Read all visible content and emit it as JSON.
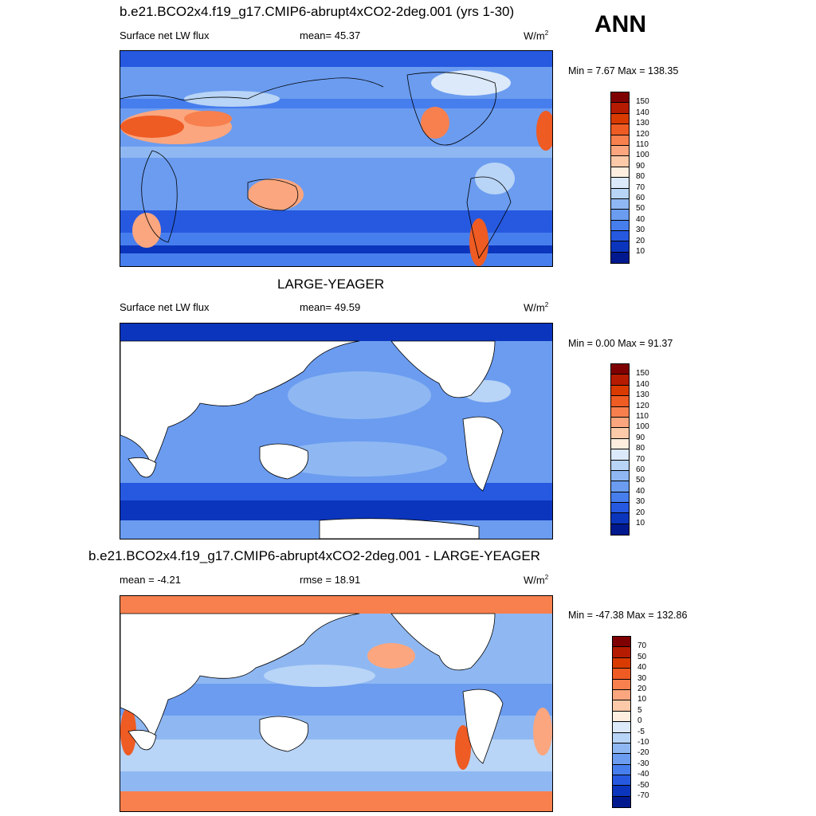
{
  "season": "ANN",
  "panel1": {
    "title": "b.e21.BCO2x4.f19_g17.CMIP6-abrupt4xCO2-2deg.001 (yrs 1-30)",
    "left": "Surface net LW flux",
    "center": "mean=  45.37",
    "units_base": "W/m",
    "units_exp": "2",
    "minmax": "Min =   7.67 Max = 138.35"
  },
  "panel2": {
    "title": "LARGE-YEAGER",
    "left": "Surface net LW flux",
    "center": "mean=  49.59",
    "units_base": "W/m",
    "units_exp": "2",
    "minmax": "Min =   0.00 Max =  91.37"
  },
  "panel3": {
    "title": "b.e21.BCO2x4.f19_g17.CMIP6-abrupt4xCO2-2deg.001 - LARGE-YEAGER",
    "left": "mean =  -4.21",
    "center": "rmse =  18.91",
    "units_base": "W/m",
    "units_exp": "2",
    "minmax": "Min = -47.38 Max = 132.86"
  },
  "colorbar_abs": {
    "labels": [
      "150",
      "140",
      "130",
      "120",
      "110",
      "100",
      "90",
      "80",
      "70",
      "60",
      "50",
      "40",
      "30",
      "20",
      "10"
    ],
    "colors": [
      "#7f0000",
      "#b51b00",
      "#d93a00",
      "#ee5b23",
      "#f7804e",
      "#fba67e",
      "#fdcaa9",
      "#fdeee0",
      "#dbe9fa",
      "#b8d4f6",
      "#8fb8f2",
      "#6b9cf0",
      "#477eed",
      "#2659e0",
      "#0b35bd",
      "#00198f"
    ]
  },
  "colorbar_diff": {
    "labels": [
      "70",
      "50",
      "40",
      "30",
      "20",
      "10",
      "5",
      "0",
      "-5",
      "-10",
      "-20",
      "-30",
      "-40",
      "-50",
      "-70"
    ],
    "colors": [
      "#7f0000",
      "#b51b00",
      "#d93a00",
      "#ee5b23",
      "#f7804e",
      "#fba67e",
      "#fdcaa9",
      "#fdeee0",
      "#dbe9fa",
      "#b8d4f6",
      "#8fb8f2",
      "#6b9cf0",
      "#477eed",
      "#2659e0",
      "#0b35bd",
      "#00198f"
    ]
  }
}
